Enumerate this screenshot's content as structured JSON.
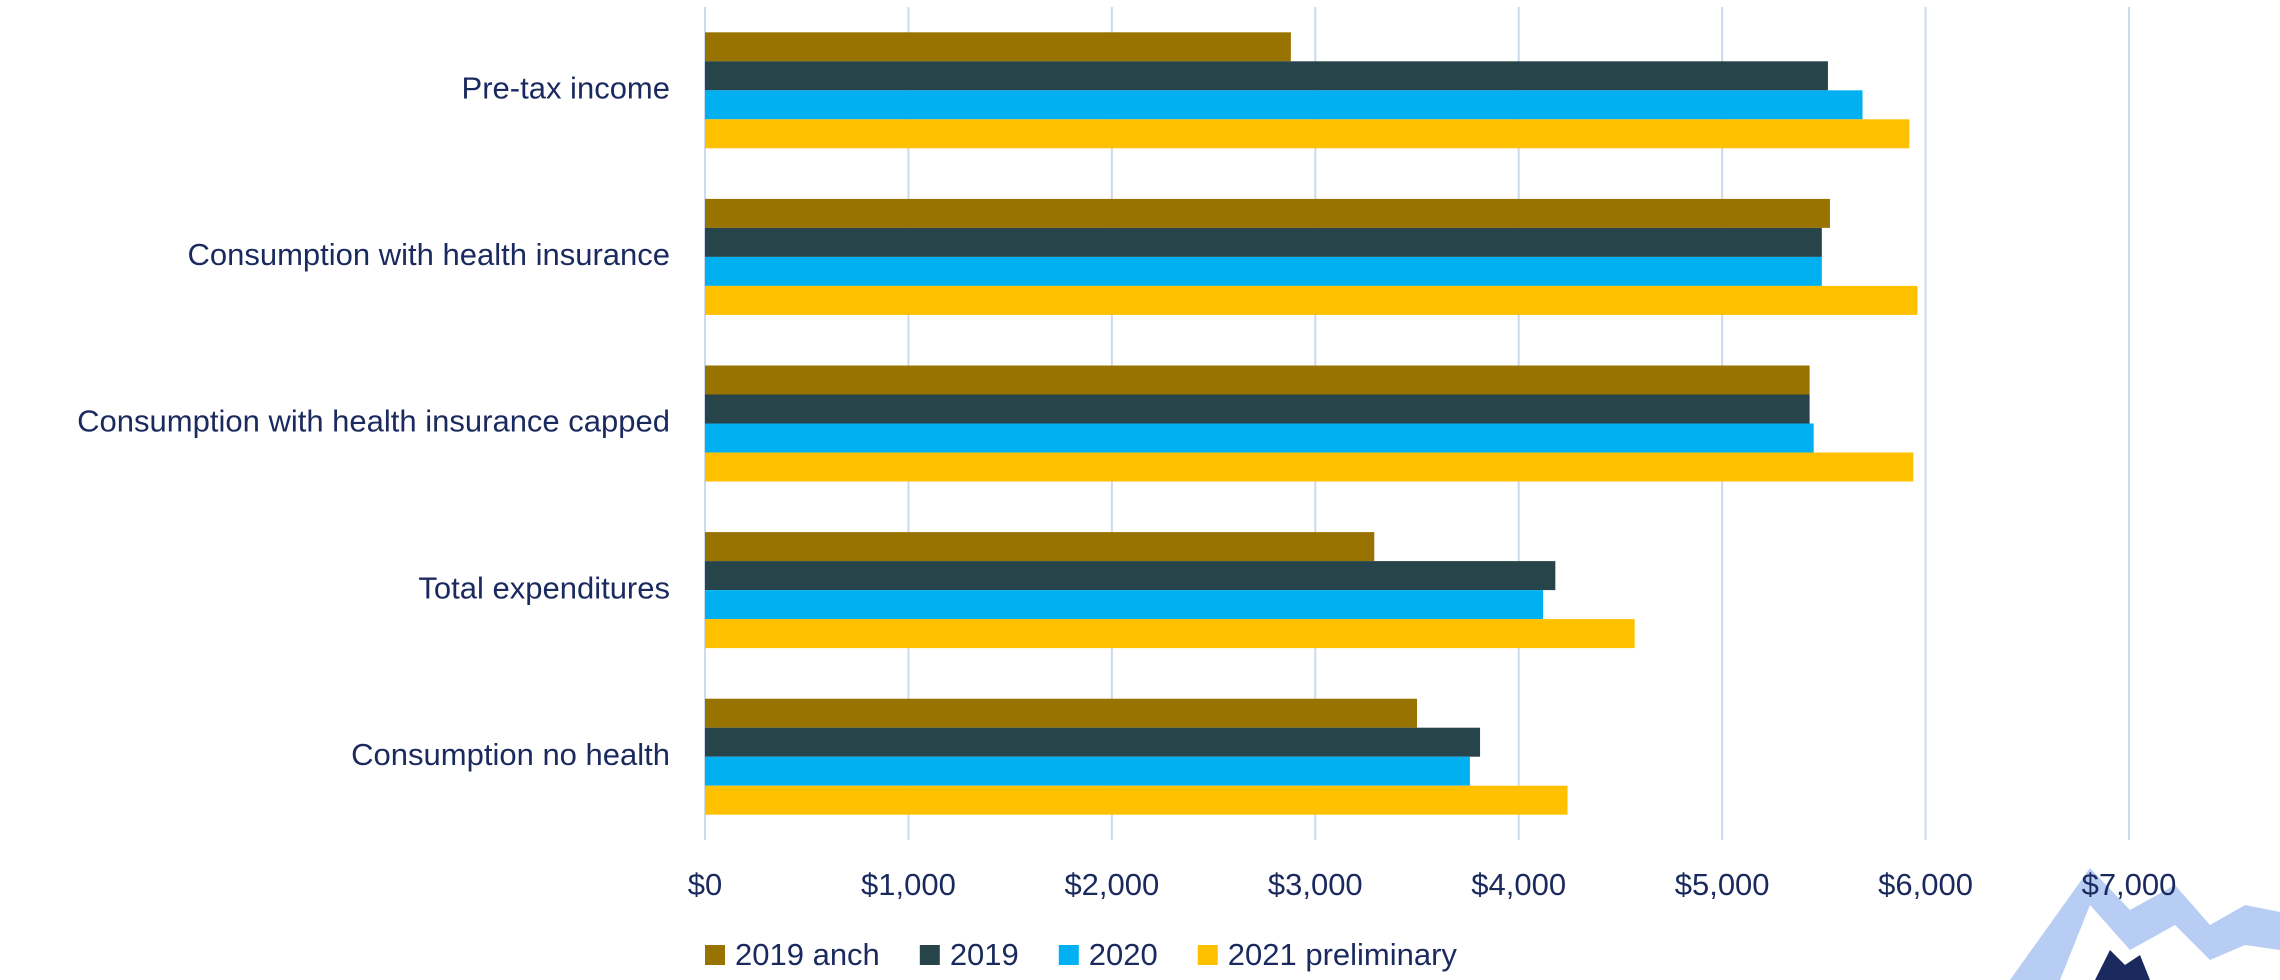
{
  "chart_data": {
    "type": "barh",
    "categories": [
      "Pre-tax income",
      "Consumption with health insurance",
      "Consumption with health insurance capped",
      "Total expenditures",
      "Consumption no health"
    ],
    "series": [
      {
        "name": "2019 anch",
        "color": "#997300",
        "values": [
          2880,
          5530,
          5430,
          3290,
          3500
        ]
      },
      {
        "name": "2019",
        "color": "#264449",
        "values": [
          5520,
          5490,
          5430,
          4180,
          3810
        ]
      },
      {
        "name": "2020",
        "color": "#00b0f0",
        "values": [
          5690,
          5490,
          5450,
          4120,
          3760
        ]
      },
      {
        "name": "2021 preliminary",
        "color": "#ffc000",
        "values": [
          5920,
          5960,
          5940,
          4570,
          4240
        ]
      }
    ],
    "xlim": [
      0,
      7000
    ],
    "xticks": [
      {
        "value": 0,
        "label": "$0"
      },
      {
        "value": 1000,
        "label": "$1,000"
      },
      {
        "value": 2000,
        "label": "$2,000"
      },
      {
        "value": 3000,
        "label": "$3,000"
      },
      {
        "value": 4000,
        "label": "$4,000"
      },
      {
        "value": 5000,
        "label": "$5,000"
      },
      {
        "value": 6000,
        "label": "$6,000"
      },
      {
        "value": 7000,
        "label": "$7,000"
      }
    ],
    "grid": true,
    "legend": "bottom"
  }
}
